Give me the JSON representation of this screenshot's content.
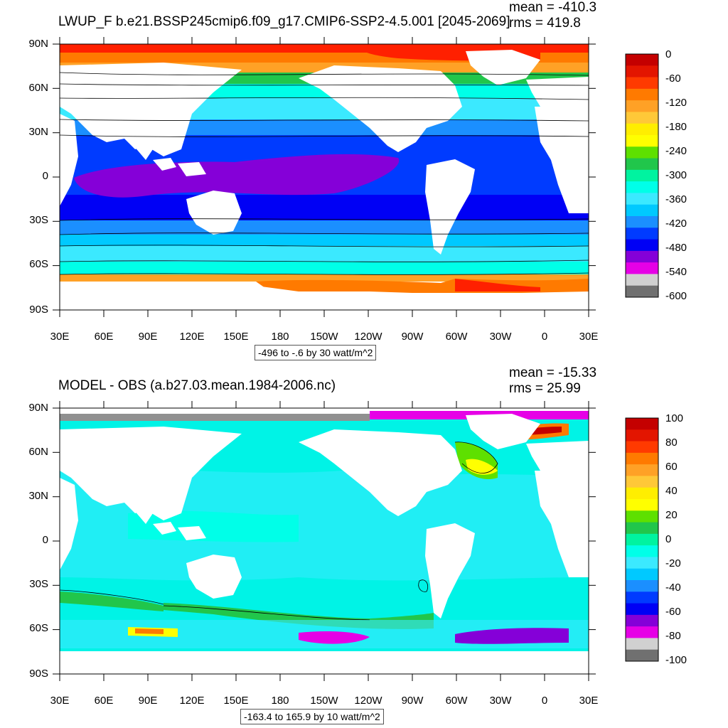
{
  "panels": [
    {
      "title": "LWUP_F b.e21.BSSP245cmip6.f09_g17.CMIP6-SSP2-4.5.001 [2045-2069]",
      "mean_text": "mean = -410.3",
      "rms_text": "rms = 419.8",
      "contour_info": "-496 to -.6 by 30 watt/m^2",
      "colorbar_labels": [
        "0",
        "-60",
        "-120",
        "-180",
        "-240",
        "-300",
        "-360",
        "-420",
        "-480",
        "-540",
        "-600"
      ],
      "colorbar_colors": [
        "#c40000",
        "#e31500",
        "#ff3a00",
        "#ff7a00",
        "#ffa126",
        "#ffc838",
        "#ffee00",
        "#ffff00",
        "#5ee000",
        "#21c64b",
        "#00f3a0",
        "#00ffe8",
        "#3be9ff",
        "#00c9ff",
        "#1b8fff",
        "#003bff",
        "#0000f5",
        "#8500d8",
        "#e600e6",
        "#d0d0d0",
        "#707070"
      ]
    },
    {
      "title": "MODEL - OBS (a.b27.03.mean.1984-2006.nc)",
      "mean_text": "mean = -15.33",
      "rms_text": "rms = 25.99",
      "contour_info": "-163.4 to 165.9 by 10 watt/m^2",
      "colorbar_labels": [
        "100",
        "80",
        "60",
        "40",
        "20",
        "0",
        "-20",
        "-40",
        "-60",
        "-80",
        "-100"
      ],
      "colorbar_colors": [
        "#c40000",
        "#e31500",
        "#ff3a00",
        "#ff7a00",
        "#ffa126",
        "#ffc838",
        "#ffee00",
        "#ffff00",
        "#5ee000",
        "#21c64b",
        "#00f3a0",
        "#00ffe8",
        "#3be9ff",
        "#00c9ff",
        "#1b8fff",
        "#003bff",
        "#0000f5",
        "#8500d8",
        "#e600e6",
        "#d0d0d0",
        "#707070"
      ]
    }
  ],
  "axes": {
    "lat_labels": [
      "90N",
      "60N",
      "30N",
      "0",
      "30S",
      "60S",
      "90S"
    ],
    "lon_labels": [
      "30E",
      "60E",
      "90E",
      "120E",
      "150E",
      "180",
      "150W",
      "120W",
      "90W",
      "60W",
      "30W",
      "0",
      "30E"
    ]
  }
}
